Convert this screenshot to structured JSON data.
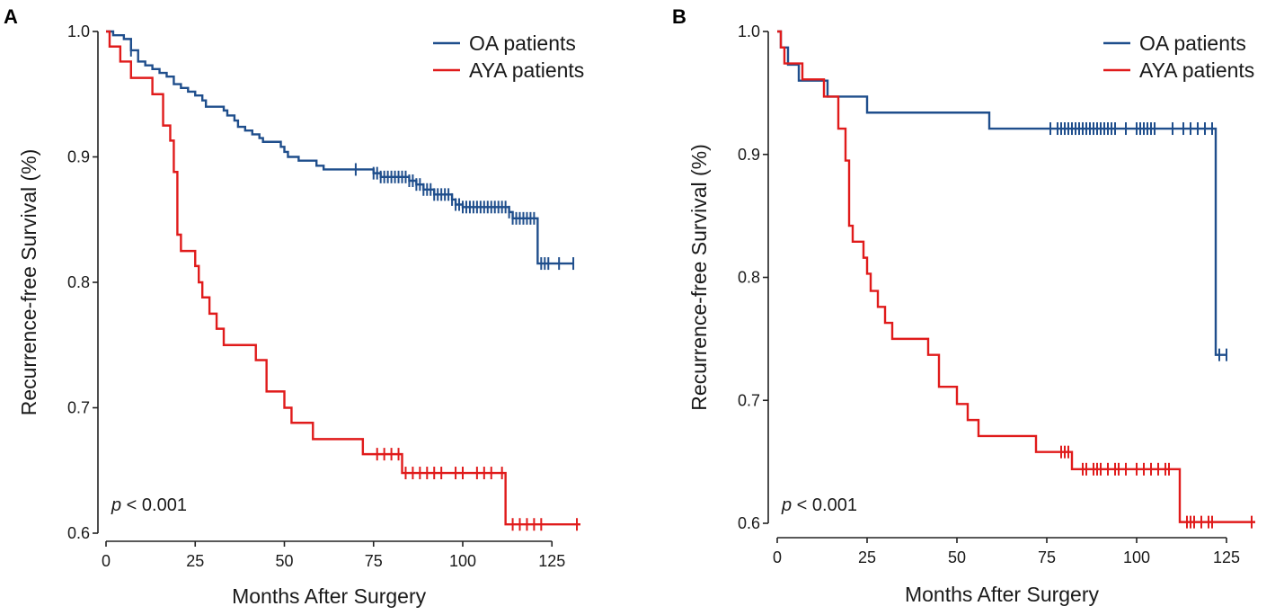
{
  "colors": {
    "oa": "#1f4e8c",
    "aya": "#e01b1b",
    "axis": "#222222"
  },
  "chart_data": [
    {
      "panel": "A",
      "type": "line",
      "subtype": "kaplan-meier",
      "xlabel": "Months After Surgery",
      "ylabel": "Recurrence-free Survival (%)",
      "xlim": [
        0,
        133
      ],
      "ylim": [
        0.6,
        1.0
      ],
      "xticks": [
        0,
        25,
        50,
        75,
        100,
        125
      ],
      "xtick_labels": [
        "0",
        "25",
        "50",
        "75",
        "100",
        "125"
      ],
      "yticks": [
        0.6,
        0.7,
        0.8,
        0.9,
        1.0
      ],
      "ytick_labels": [
        "0.6",
        "0.7",
        "0.8",
        "0.9",
        "1.0"
      ],
      "legend_position": "top-right",
      "annotation": {
        "italic": "p",
        "rest": " < 0.001"
      },
      "series": [
        {
          "name": "OA patients",
          "color_key": "oa",
          "steps": [
            [
              0,
              1.0
            ],
            [
              2,
              0.997
            ],
            [
              5,
              0.994
            ],
            [
              7,
              0.985
            ],
            [
              9,
              0.976
            ],
            [
              11,
              0.973
            ],
            [
              13,
              0.97
            ],
            [
              15,
              0.967
            ],
            [
              17,
              0.964
            ],
            [
              19,
              0.958
            ],
            [
              21,
              0.955
            ],
            [
              23,
              0.952
            ],
            [
              25,
              0.949
            ],
            [
              27,
              0.945
            ],
            [
              28,
              0.94
            ],
            [
              33,
              0.937
            ],
            [
              34,
              0.933
            ],
            [
              36,
              0.929
            ],
            [
              37,
              0.924
            ],
            [
              39,
              0.921
            ],
            [
              41,
              0.918
            ],
            [
              43,
              0.915
            ],
            [
              44,
              0.912
            ],
            [
              49,
              0.908
            ],
            [
              50,
              0.904
            ],
            [
              51,
              0.9
            ],
            [
              54,
              0.897
            ],
            [
              59,
              0.893
            ],
            [
              61,
              0.89
            ],
            [
              75,
              0.887
            ],
            [
              77,
              0.884
            ],
            [
              85,
              0.881
            ],
            [
              87,
              0.878
            ],
            [
              89,
              0.874
            ],
            [
              92,
              0.87
            ],
            [
              97,
              0.866
            ],
            [
              98,
              0.862
            ],
            [
              100,
              0.86
            ],
            [
              113,
              0.856
            ],
            [
              114,
              0.851
            ],
            [
              121,
              0.815
            ]
          ],
          "end_x": 131,
          "censors": [
            7,
            70,
            75,
            76,
            77,
            78,
            79,
            80,
            81,
            82,
            83,
            84,
            85,
            86,
            87,
            88,
            89,
            90,
            91,
            92,
            93,
            94,
            95,
            96,
            97,
            98,
            99,
            100,
            101,
            102,
            103,
            104,
            105,
            106,
            107,
            108,
            109,
            110,
            111,
            112,
            113,
            114,
            115,
            116,
            117,
            118,
            119,
            120,
            122,
            123,
            124,
            127,
            131
          ]
        },
        {
          "name": "AYA patients",
          "color_key": "aya",
          "steps": [
            [
              0,
              1.0
            ],
            [
              1,
              0.988
            ],
            [
              4,
              0.976
            ],
            [
              7,
              0.963
            ],
            [
              13,
              0.95
            ],
            [
              16,
              0.925
            ],
            [
              18,
              0.913
            ],
            [
              19,
              0.888
            ],
            [
              20,
              0.838
            ],
            [
              21,
              0.825
            ],
            [
              25,
              0.813
            ],
            [
              26,
              0.8
            ],
            [
              27,
              0.788
            ],
            [
              29,
              0.775
            ],
            [
              31,
              0.763
            ],
            [
              33,
              0.75
            ],
            [
              42,
              0.738
            ],
            [
              45,
              0.713
            ],
            [
              50,
              0.7
            ],
            [
              52,
              0.688
            ],
            [
              58,
              0.675
            ],
            [
              72,
              0.663
            ],
            [
              83,
              0.648
            ],
            [
              112,
              0.607
            ]
          ],
          "end_x": 133,
          "censors": [
            76,
            78,
            80,
            82,
            84,
            86,
            88,
            90,
            92,
            94,
            98,
            100,
            104,
            106,
            108,
            111,
            114,
            116,
            118,
            120,
            122,
            132
          ]
        }
      ]
    },
    {
      "panel": "B",
      "type": "line",
      "subtype": "kaplan-meier",
      "xlabel": "Months After Surgery",
      "ylabel": "Recurrence-free Survival (%)",
      "xlim": [
        0,
        133
      ],
      "ylim": [
        0.6,
        1.0
      ],
      "xticks": [
        0,
        25,
        50,
        75,
        100,
        125
      ],
      "xtick_labels": [
        "0",
        "25",
        "50",
        "75",
        "100",
        "125"
      ],
      "yticks": [
        0.6,
        0.7,
        0.8,
        0.9,
        1.0
      ],
      "ytick_labels": [
        "0.6",
        "0.7",
        "0.8",
        "0.9",
        "1.0"
      ],
      "legend_position": "top-right",
      "annotation": {
        "italic": "p",
        "rest": " < 0.001"
      },
      "series": [
        {
          "name": "OA patients",
          "color_key": "oa",
          "steps": [
            [
              0,
              1.0
            ],
            [
              1,
              0.987
            ],
            [
              3,
              0.973
            ],
            [
              6,
              0.96
            ],
            [
              14,
              0.947
            ],
            [
              25,
              0.934
            ],
            [
              59,
              0.921
            ],
            [
              122,
              0.737
            ]
          ],
          "end_x": 125,
          "censors": [
            76,
            78,
            79,
            80,
            81,
            82,
            83,
            84,
            85,
            86,
            87,
            88,
            89,
            90,
            91,
            92,
            93,
            94,
            97,
            100,
            101,
            102,
            103,
            104,
            105,
            110,
            113,
            115,
            117,
            119,
            121,
            123,
            125
          ]
        },
        {
          "name": "AYA patients",
          "color_key": "aya",
          "steps": [
            [
              0,
              1.0
            ],
            [
              1,
              0.987
            ],
            [
              2,
              0.974
            ],
            [
              7,
              0.961
            ],
            [
              13,
              0.947
            ],
            [
              17,
              0.921
            ],
            [
              19,
              0.895
            ],
            [
              20,
              0.842
            ],
            [
              21,
              0.829
            ],
            [
              24,
              0.816
            ],
            [
              25,
              0.803
            ],
            [
              26,
              0.789
            ],
            [
              28,
              0.776
            ],
            [
              30,
              0.763
            ],
            [
              32,
              0.75
            ],
            [
              42,
              0.737
            ],
            [
              45,
              0.711
            ],
            [
              50,
              0.697
            ],
            [
              53,
              0.684
            ],
            [
              56,
              0.671
            ],
            [
              72,
              0.658
            ],
            [
              82,
              0.644
            ],
            [
              112,
              0.601
            ]
          ],
          "end_x": 133,
          "censors": [
            79,
            80,
            81,
            85,
            86,
            88,
            89,
            90,
            92,
            94,
            95,
            97,
            100,
            102,
            104,
            106,
            108,
            109,
            114,
            115,
            116,
            118,
            120,
            121,
            132
          ]
        }
      ]
    }
  ]
}
